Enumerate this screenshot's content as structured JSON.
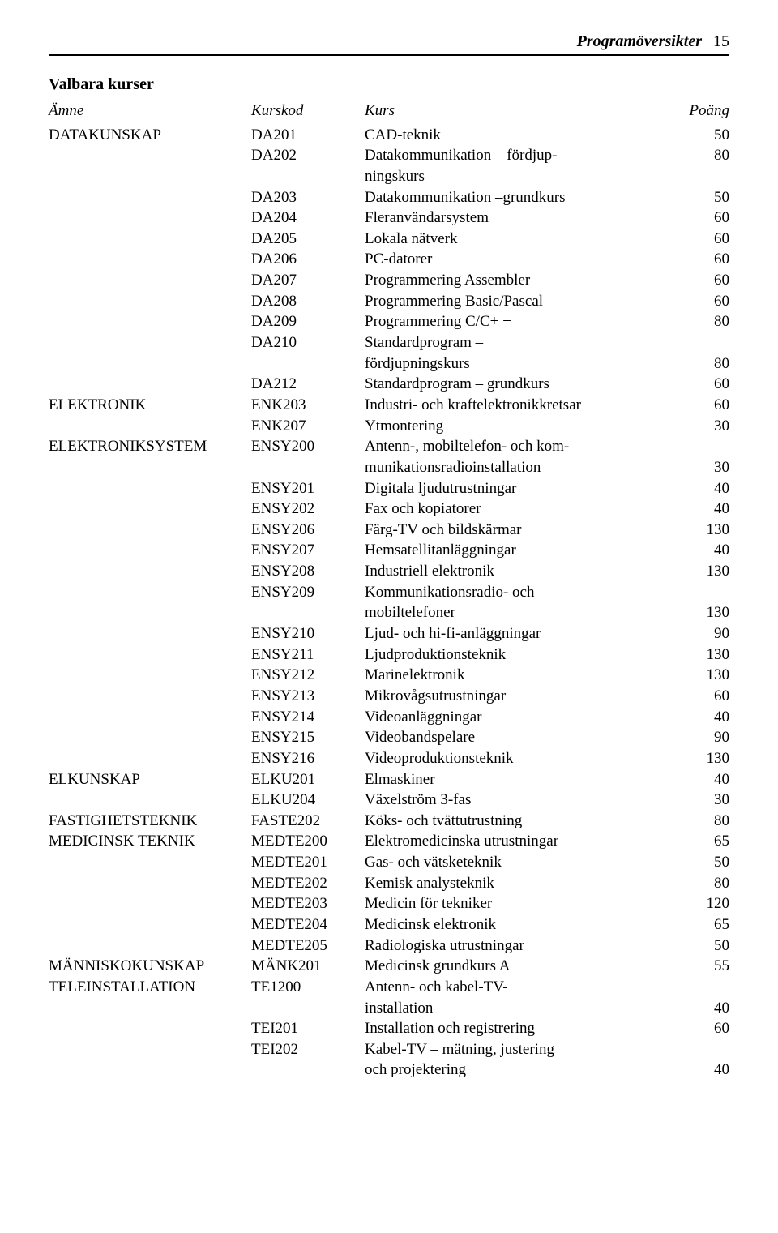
{
  "header": {
    "title": "Programöversikter",
    "page": "15"
  },
  "section_heading": "Valbara kurser",
  "columns": {
    "subject": "Ämne",
    "code": "Kurskod",
    "course": "Kurs",
    "points": "Poäng"
  },
  "rows": [
    {
      "subject": "DATAKUNSKAP",
      "code": "DA201",
      "course": "CAD-teknik",
      "points": "50"
    },
    {
      "subject": "",
      "code": "DA202",
      "course": "Datakommunikation – fördjup-",
      "points": "80"
    },
    {
      "subject": "",
      "code": "",
      "course": "ningskurs",
      "points": ""
    },
    {
      "subject": "",
      "code": "DA203",
      "course": "Datakommunikation –grundkurs",
      "points": "50"
    },
    {
      "subject": "",
      "code": "DA204",
      "course": "Fleranvändarsystem",
      "points": "60"
    },
    {
      "subject": "",
      "code": "DA205",
      "course": "Lokala nätverk",
      "points": "60"
    },
    {
      "subject": "",
      "code": "DA206",
      "course": "PC-datorer",
      "points": "60"
    },
    {
      "subject": "",
      "code": "DA207",
      "course": "Programmering Assembler",
      "points": "60"
    },
    {
      "subject": "",
      "code": "DA208",
      "course": "Programmering Basic/Pascal",
      "points": "60"
    },
    {
      "subject": "",
      "code": "DA209",
      "course": "Programmering C/C+ +",
      "points": "80"
    },
    {
      "subject": "",
      "code": "DA210",
      "course": "Standardprogram –",
      "points": ""
    },
    {
      "subject": "",
      "code": "",
      "course": "fördjupningskurs",
      "points": "80"
    },
    {
      "subject": "",
      "code": "DA212",
      "course": "Standardprogram – grundkurs",
      "points": "60"
    },
    {
      "subject": "ELEKTRONIK",
      "code": "ENK203",
      "course": "Industri- och kraftelektronikkretsar",
      "points": "60"
    },
    {
      "subject": "",
      "code": "ENK207",
      "course": "Ytmontering",
      "points": "30"
    },
    {
      "subject": "ELEKTRONIKSYSTEM",
      "code": "ENSY200",
      "course": "Antenn-, mobiltelefon- och kom-",
      "points": ""
    },
    {
      "subject": "",
      "code": "",
      "course": "munikationsradioinstallation",
      "points": "30"
    },
    {
      "subject": "",
      "code": "ENSY201",
      "course": "Digitala ljudutrustningar",
      "points": "40"
    },
    {
      "subject": "",
      "code": "ENSY202",
      "course": "Fax och kopiatorer",
      "points": "40"
    },
    {
      "subject": "",
      "code": "ENSY206",
      "course": "Färg-TV och bildskärmar",
      "points": "130"
    },
    {
      "subject": "",
      "code": "ENSY207",
      "course": "Hemsatellitanläggningar",
      "points": "40"
    },
    {
      "subject": "",
      "code": "ENSY208",
      "course": "Industriell elektronik",
      "points": "130"
    },
    {
      "subject": "",
      "code": "ENSY209",
      "course": "Kommunikationsradio- och",
      "points": ""
    },
    {
      "subject": "",
      "code": "",
      "course": "mobiltelefoner",
      "points": "130"
    },
    {
      "subject": "",
      "code": "ENSY210",
      "course": "Ljud- och hi-fi-anläggningar",
      "points": "90"
    },
    {
      "subject": "",
      "code": "ENSY211",
      "course": "Ljudproduktionsteknik",
      "points": "130"
    },
    {
      "subject": "",
      "code": "ENSY212",
      "course": "Marinelektronik",
      "points": "130"
    },
    {
      "subject": "",
      "code": "ENSY213",
      "course": "Mikrovågsutrustningar",
      "points": "60"
    },
    {
      "subject": "",
      "code": "ENSY214",
      "course": "Videoanläggningar",
      "points": "40"
    },
    {
      "subject": "",
      "code": "ENSY215",
      "course": "Videobandspelare",
      "points": "90"
    },
    {
      "subject": "",
      "code": "ENSY216",
      "course": "Videoproduktionsteknik",
      "points": "130"
    },
    {
      "subject": "ELKUNSKAP",
      "code": "ELKU201",
      "course": "Elmaskiner",
      "points": "40"
    },
    {
      "subject": "",
      "code": "ELKU204",
      "course": "Växelström 3-fas",
      "points": "30"
    },
    {
      "subject": "FASTIGHETSTEKNIK",
      "code": "FASTE202",
      "course": "Köks- och tvättutrustning",
      "points": "80"
    },
    {
      "subject": "MEDICINSK TEKNIK",
      "code": "MEDTE200",
      "course": "Elektromedicinska utrustningar",
      "points": "65"
    },
    {
      "subject": "",
      "code": "MEDTE201",
      "course": "Gas- och vätsketeknik",
      "points": "50"
    },
    {
      "subject": "",
      "code": "MEDTE202",
      "course": "Kemisk analysteknik",
      "points": "80"
    },
    {
      "subject": "",
      "code": "MEDTE203",
      "course": "Medicin för tekniker",
      "points": "120"
    },
    {
      "subject": "",
      "code": "MEDTE204",
      "course": "Medicinsk elektronik",
      "points": "65"
    },
    {
      "subject": "",
      "code": "MEDTE205",
      "course": "Radiologiska utrustningar",
      "points": "50"
    },
    {
      "subject": "MÄNNISKOKUNSKAP",
      "code": "MÄNK201",
      "course": "Medicinsk grundkurs A",
      "points": "55"
    },
    {
      "subject": "TELEINSTALLATION",
      "code": "TE1200",
      "course": "Antenn- och kabel-TV-",
      "points": ""
    },
    {
      "subject": "",
      "code": "",
      "course": "installation",
      "points": "40"
    },
    {
      "subject": "",
      "code": "TEI201",
      "course": "Installation och registrering",
      "points": "60"
    },
    {
      "subject": "",
      "code": "TEI202",
      "course": "Kabel-TV – mätning, justering",
      "points": ""
    },
    {
      "subject": "",
      "code": "",
      "course": "och projektering",
      "points": "40"
    }
  ]
}
